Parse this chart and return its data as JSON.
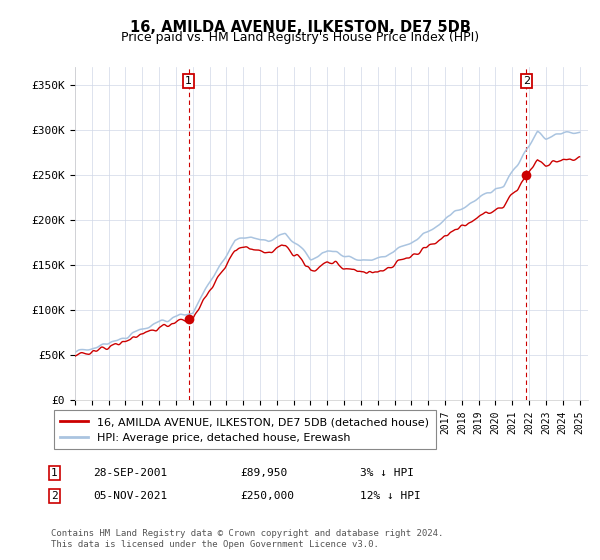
{
  "title": "16, AMILDA AVENUE, ILKESTON, DE7 5DB",
  "subtitle": "Price paid vs. HM Land Registry's House Price Index (HPI)",
  "ylabel_ticks": [
    "£0",
    "£50K",
    "£100K",
    "£150K",
    "£200K",
    "£250K",
    "£300K",
    "£350K"
  ],
  "ylabel_vals": [
    0,
    50000,
    100000,
    150000,
    200000,
    250000,
    300000,
    350000
  ],
  "ylim": [
    0,
    370000
  ],
  "xlim_start": 1995.0,
  "xlim_end": 2025.5,
  "sale1_x": 2001.75,
  "sale1_y": 89950,
  "sale2_x": 2021.84,
  "sale2_y": 250000,
  "hpi_color": "#aac4e0",
  "sale_color": "#cc0000",
  "legend_sale_label": "16, AMILDA AVENUE, ILKESTON, DE7 5DB (detached house)",
  "legend_hpi_label": "HPI: Average price, detached house, Erewash",
  "footnote": "Contains HM Land Registry data © Crown copyright and database right 2024.\nThis data is licensed under the Open Government Licence v3.0."
}
